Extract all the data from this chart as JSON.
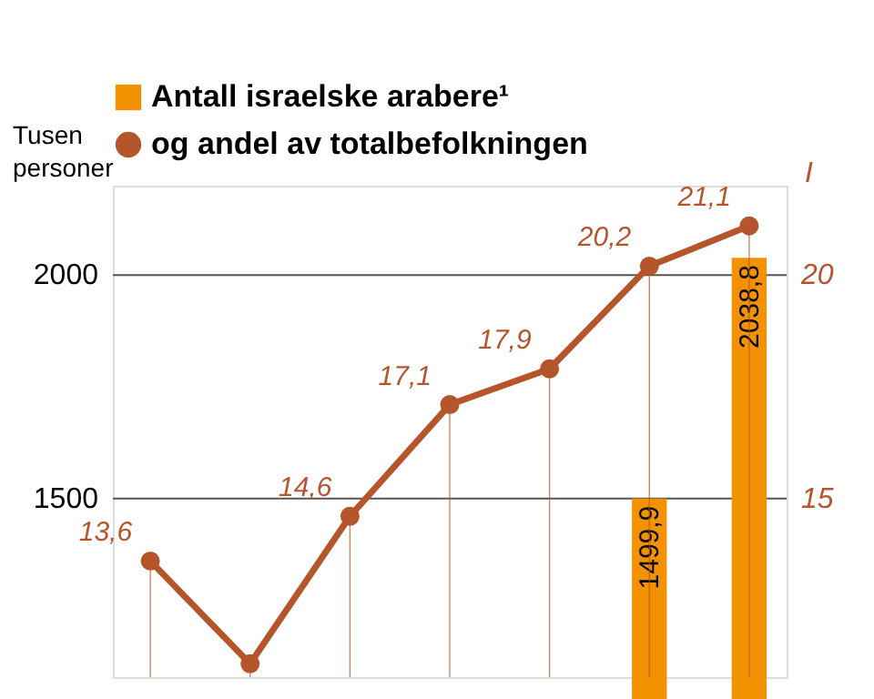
{
  "chart_data": {
    "type": "bar",
    "categories": [
      null,
      null,
      null,
      null,
      null,
      null,
      null
    ],
    "series": [
      {
        "name": "Antall israelske arabere¹",
        "color": "#f39200",
        "values": [
          null,
          null,
          null,
          null,
          null,
          1499.9,
          2038.8
        ],
        "value_labels": [
          null,
          null,
          null,
          null,
          null,
          "1499,9",
          "2038,8"
        ]
      },
      {
        "name": "og andel av totalbefolkningen",
        "type": "line",
        "axis": "y2",
        "color": "#b5552b",
        "marker": "circle",
        "values": [
          13.6,
          11.3,
          14.6,
          17.1,
          17.9,
          20.2,
          21.1
        ],
        "value_labels": [
          "13,6",
          null,
          "14,6",
          "17,1",
          "17,9",
          "20,2",
          "21,1"
        ]
      }
    ],
    "ylabel": "Tusen personer",
    "y2label": "I",
    "ylim": [
      1100,
      2200
    ],
    "yticks": [
      1500,
      2000
    ],
    "y2lim": [
      11,
      22
    ],
    "y2ticks": [
      15,
      20
    ],
    "grid": "y",
    "legend": "top"
  }
}
